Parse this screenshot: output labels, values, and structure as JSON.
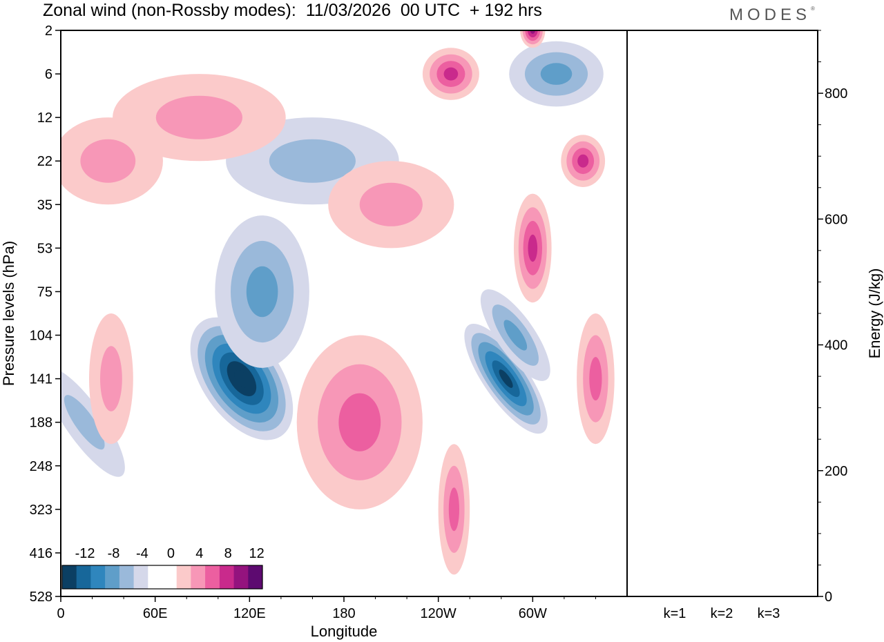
{
  "header": {
    "title": "Zonal wind (non-Rossby modes):  11/03/2026  00 UTC  + 192 hrs",
    "brand": "MODES",
    "brand_mark": "®"
  },
  "chart_data": [
    {
      "type": "heatmap",
      "title": "Zonal wind (non-Rossby modes):  11/03/2026  00 UTC  + 192 hrs",
      "xlabel": "Longitude",
      "ylabel": "Pressure levels (hPa)",
      "x_range_deg": [
        0,
        360
      ],
      "xticks": [
        {
          "label": "0",
          "lon": 0
        },
        {
          "label": "60E",
          "lon": 60
        },
        {
          "label": "120E",
          "lon": 120
        },
        {
          "label": "180",
          "lon": 180
        },
        {
          "label": "120W",
          "lon": 240
        },
        {
          "label": "60W",
          "lon": 300
        }
      ],
      "ylevels": [
        "2",
        "6",
        "12",
        "22",
        "35",
        "53",
        "75",
        "104",
        "141",
        "188",
        "248",
        "323",
        "416",
        "528"
      ],
      "colorbar": {
        "labels": [
          "-12",
          "-8",
          "-4",
          "0",
          "4",
          "8",
          "12"
        ],
        "colors": [
          "#0b3f63",
          "#17679a",
          "#2f86bd",
          "#5f9ec9",
          "#9ab9da",
          "#d5d8ea",
          "#ffffff",
          "#ffffff",
          "#fbcaca",
          "#f797b7",
          "#ec5fa0",
          "#c92a8c",
          "#94137e",
          "#5d0a70"
        ]
      },
      "features": [
        {
          "lon": 115,
          "level": 141,
          "value": -14,
          "lon_w": 25,
          "lev_w": 3.2
        },
        {
          "lon": 128,
          "level": 75,
          "value": -6,
          "lon_w": 30,
          "lev_w": 3.5
        },
        {
          "lon": 283,
          "level": 141,
          "value": -13,
          "lon_w": 14,
          "lev_w": 3.0
        },
        {
          "lon": 289,
          "level": 104,
          "value": -6,
          "lon_w": 12,
          "lev_w": 2.5
        },
        {
          "lon": 160,
          "level": 22,
          "value": -5,
          "lon_w": 55,
          "lev_w": 2.0
        },
        {
          "lon": 315,
          "level": 6,
          "value": -6,
          "lon_w": 30,
          "lev_w": 1.5
        },
        {
          "lon": 15,
          "level": 188,
          "value": -5,
          "lon_w": 12,
          "lev_w": 3.0
        },
        {
          "lon": 300,
          "level": 2,
          "value": 11,
          "lon_w": 8,
          "lev_w": 0.8
        },
        {
          "lon": 248,
          "level": 6,
          "value": 8,
          "lon_w": 18,
          "lev_w": 1.2
        },
        {
          "lon": 332,
          "level": 22,
          "value": 9,
          "lon_w": 14,
          "lev_w": 1.2
        },
        {
          "lon": 300,
          "level": 53,
          "value": 8,
          "lon_w": 12,
          "lev_w": 2.5
        },
        {
          "lon": 190,
          "level": 188,
          "value": 6,
          "lon_w": 40,
          "lev_w": 4.0
        },
        {
          "lon": 340,
          "level": 141,
          "value": 6,
          "lon_w": 12,
          "lev_w": 3.0
        },
        {
          "lon": 32,
          "level": 141,
          "value": 5,
          "lon_w": 14,
          "lev_w": 3.0
        },
        {
          "lon": 250,
          "level": 323,
          "value": 6,
          "lon_w": 10,
          "lev_w": 3.0
        },
        {
          "lon": 88,
          "level": 12,
          "value": 5,
          "lon_w": 55,
          "lev_w": 2.0
        },
        {
          "lon": 210,
          "level": 35,
          "value": 4,
          "lon_w": 40,
          "lev_w": 2.0
        },
        {
          "lon": 30,
          "level": 22,
          "value": 4,
          "lon_w": 35,
          "lev_w": 2.0
        }
      ]
    },
    {
      "type": "bar",
      "ylabel": "Energy (J/kg)",
      "ylim": [
        0,
        900
      ],
      "yticks": [
        0,
        200,
        400,
        600,
        800
      ],
      "categories": [
        "k=1",
        "k=2",
        "k=3"
      ],
      "values": [
        1,
        1,
        1
      ]
    }
  ]
}
